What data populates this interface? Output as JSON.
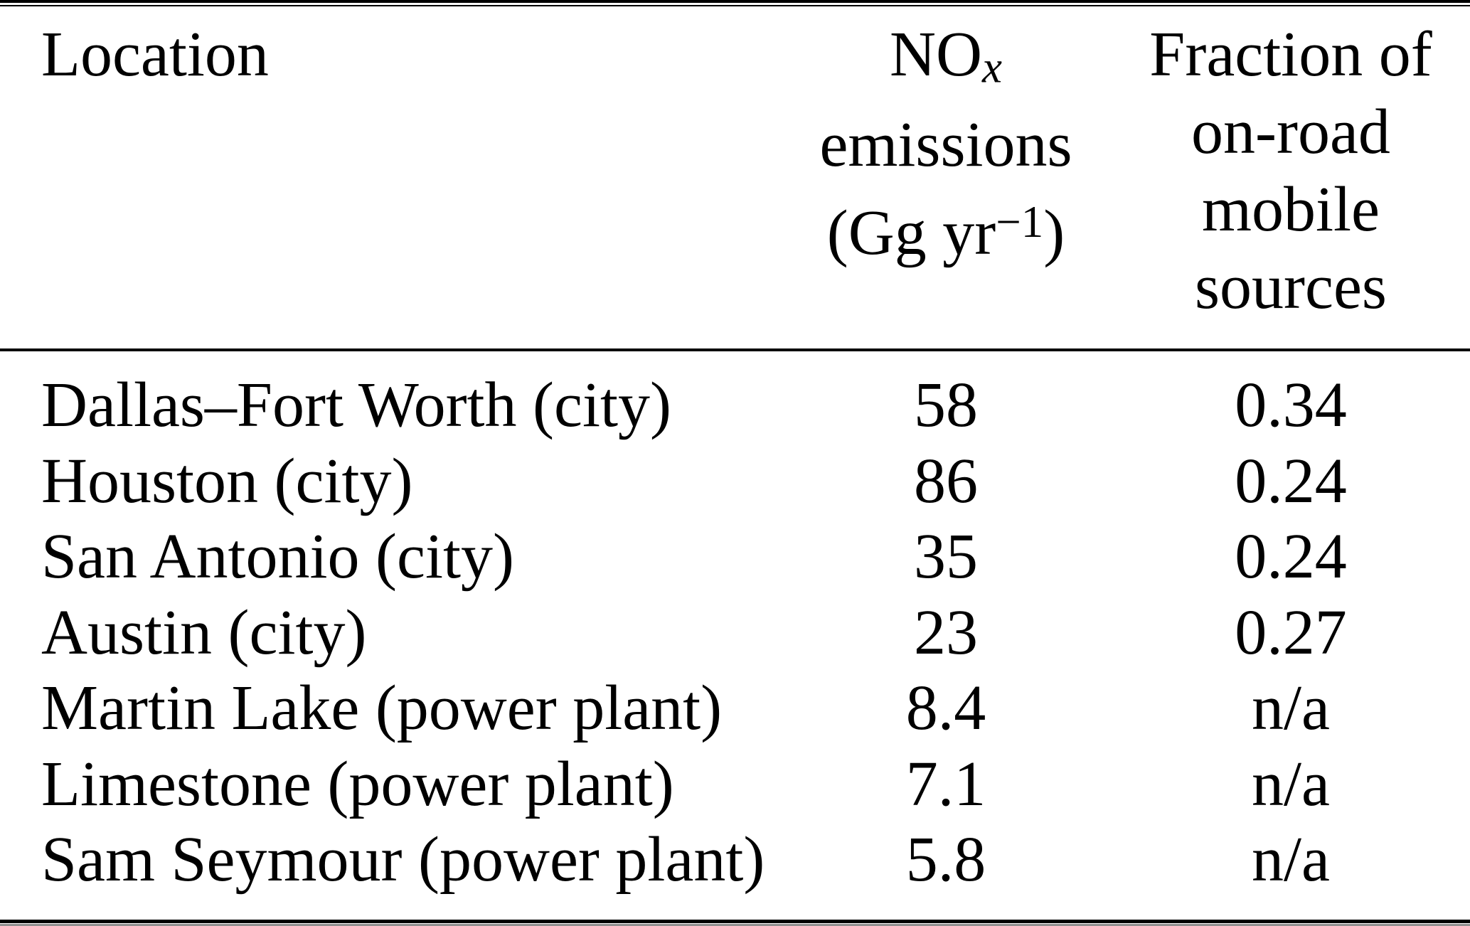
{
  "table": {
    "header": {
      "location": "Location",
      "nox": {
        "symbol_main": "NO",
        "symbol_sub": "x",
        "line2": "emissions",
        "unit_open": "(Gg yr",
        "unit_sup": "−1",
        "unit_close": ")"
      },
      "fraction_lines": [
        "Fraction of",
        "on-road",
        "mobile",
        "sources"
      ]
    },
    "rows": [
      {
        "location": "Dallas–Fort Worth (city)",
        "nox": "58",
        "fraction": "0.34"
      },
      {
        "location": "Houston (city)",
        "nox": "86",
        "fraction": "0.24"
      },
      {
        "location": "San Antonio (city)",
        "nox": "35",
        "fraction": "0.24"
      },
      {
        "location": "Austin (city)",
        "nox": "23",
        "fraction": "0.27"
      },
      {
        "location": "Martin Lake (power plant)",
        "nox": "8.4",
        "fraction": "n/a"
      },
      {
        "location": "Limestone (power plant)",
        "nox": "7.1",
        "fraction": "n/a"
      },
      {
        "location": "Sam Seymour (power plant)",
        "nox": "5.8",
        "fraction": "n/a"
      }
    ]
  },
  "colors": {
    "text": "#000000",
    "background": "#ffffff",
    "rule": "#000000"
  }
}
